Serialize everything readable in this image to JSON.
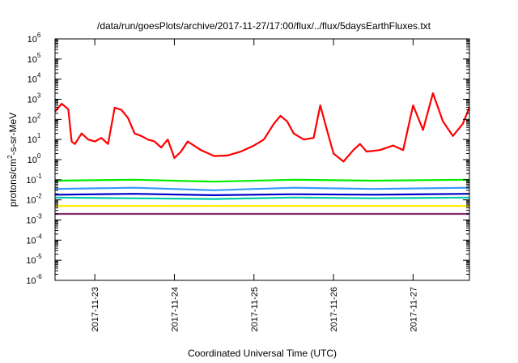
{
  "chart_data": {
    "type": "line",
    "title": "/data/run/goesPlots/archive/2017-11-27/17:00/flux/../flux/5daysEarthFluxes.txt",
    "xlabel": "Coordinated Universal Time (UTC)",
    "ylabel": {
      "base": "protons/cm",
      "sup": "2",
      "rest": "-s-sr-MeV"
    },
    "x_ticks": [
      "2017-11-23",
      "2017-11-24",
      "2017-11-25",
      "2017-11-26",
      "2017-11-27"
    ],
    "x_range": [
      "2017-11-22T12:00",
      "2017-11-27T17:00"
    ],
    "y_scale": "log",
    "y_ticks": [
      {
        "base": "10",
        "exp": "-6"
      },
      {
        "base": "10",
        "exp": "-5"
      },
      {
        "base": "10",
        "exp": "-4"
      },
      {
        "base": "10",
        "exp": "-3"
      },
      {
        "base": "10",
        "exp": "-2"
      },
      {
        "base": "10",
        "exp": "-1"
      },
      {
        "base": "10",
        "exp": "0"
      },
      {
        "base": "10",
        "exp": "1"
      },
      {
        "base": "10",
        "exp": "2"
      },
      {
        "base": "10",
        "exp": "3"
      },
      {
        "base": "10",
        "exp": "4"
      },
      {
        "base": "10",
        "exp": "5"
      },
      {
        "base": "10",
        "exp": "6"
      }
    ],
    "ylim": [
      1e-06,
      1000000.0
    ],
    "grid": false,
    "legend": "none",
    "series": [
      {
        "color": "#ff0000",
        "x": [
          "2017-11-22T12:00",
          "2017-11-22T14:00",
          "2017-11-22T16:00",
          "2017-11-22T17:00",
          "2017-11-22T18:00",
          "2017-11-22T20:00",
          "2017-11-22T22:00",
          "2017-11-23T00:00",
          "2017-11-23T02:00",
          "2017-11-23T04:00",
          "2017-11-23T06:00",
          "2017-11-23T08:00",
          "2017-11-23T10:00",
          "2017-11-23T12:00",
          "2017-11-23T14:00",
          "2017-11-23T16:00",
          "2017-11-23T18:00",
          "2017-11-23T20:00",
          "2017-11-23T22:00",
          "2017-11-24T00:00",
          "2017-11-24T02:00",
          "2017-11-24T04:00",
          "2017-11-24T08:00",
          "2017-11-24T12:00",
          "2017-11-24T16:00",
          "2017-11-24T20:00",
          "2017-11-25T00:00",
          "2017-11-25T03:00",
          "2017-11-25T06:00",
          "2017-11-25T08:00",
          "2017-11-25T10:00",
          "2017-11-25T12:00",
          "2017-11-25T15:00",
          "2017-11-25T18:00",
          "2017-11-25T20:00",
          "2017-11-25T22:00",
          "2017-11-26T00:00",
          "2017-11-26T03:00",
          "2017-11-26T06:00",
          "2017-11-26T08:00",
          "2017-11-26T10:00",
          "2017-11-26T14:00",
          "2017-11-26T18:00",
          "2017-11-26T21:00",
          "2017-11-27T00:00",
          "2017-11-27T03:00",
          "2017-11-27T06:00",
          "2017-11-27T09:00",
          "2017-11-27T12:00",
          "2017-11-27T15:00",
          "2017-11-27T17:00"
        ],
        "y": [
          250,
          600,
          320,
          8,
          6,
          20,
          10,
          8,
          12,
          6,
          380,
          300,
          120,
          20,
          15,
          10,
          8,
          4,
          10,
          1.2,
          2.5,
          8,
          3,
          1.5,
          1.6,
          2.5,
          5,
          10,
          60,
          150,
          80,
          20,
          10,
          12,
          500,
          30,
          2,
          0.8,
          3,
          6,
          2.5,
          3,
          5,
          3,
          500,
          30,
          2000,
          80,
          15,
          60,
          400
        ]
      },
      {
        "color": "#00ee00",
        "x": [
          "2017-11-22T12:00",
          "2017-11-23T12:00",
          "2017-11-24T12:00",
          "2017-11-25T12:00",
          "2017-11-26T12:00",
          "2017-11-27T17:00"
        ],
        "y": [
          0.09,
          0.1,
          0.08,
          0.1,
          0.09,
          0.1
        ]
      },
      {
        "color": "#3399ff",
        "x": [
          "2017-11-22T12:00",
          "2017-11-23T12:00",
          "2017-11-24T12:00",
          "2017-11-25T12:00",
          "2017-11-26T12:00",
          "2017-11-27T17:00"
        ],
        "y": [
          0.035,
          0.04,
          0.03,
          0.04,
          0.035,
          0.04
        ]
      },
      {
        "color": "#00ccaa",
        "x": [
          "2017-11-22T12:00",
          "2017-11-23T12:00",
          "2017-11-24T12:00",
          "2017-11-25T12:00",
          "2017-11-26T12:00",
          "2017-11-27T17:00"
        ],
        "y": [
          0.013,
          0.012,
          0.011,
          0.013,
          0.012,
          0.013
        ]
      },
      {
        "color": "#0000cc",
        "x": [
          "2017-11-22T12:00",
          "2017-11-23T12:00",
          "2017-11-24T12:00",
          "2017-11-25T12:00",
          "2017-11-26T12:00",
          "2017-11-27T17:00"
        ],
        "y": [
          0.018,
          0.02,
          0.017,
          0.019,
          0.018,
          0.02
        ]
      },
      {
        "color": "#ffee00",
        "x": [
          "2017-11-22T12:00",
          "2017-11-23T12:00",
          "2017-11-24T12:00",
          "2017-11-25T12:00",
          "2017-11-26T12:00",
          "2017-11-27T17:00"
        ],
        "y": [
          0.005,
          0.005,
          0.005,
          0.005,
          0.005,
          0.005
        ]
      },
      {
        "color": "#80306a",
        "x": [
          "2017-11-22T12:00",
          "2017-11-23T12:00",
          "2017-11-24T12:00",
          "2017-11-25T12:00",
          "2017-11-26T12:00",
          "2017-11-27T17:00"
        ],
        "y": [
          0.002,
          0.002,
          0.002,
          0.002,
          0.002,
          0.002
        ]
      }
    ]
  }
}
